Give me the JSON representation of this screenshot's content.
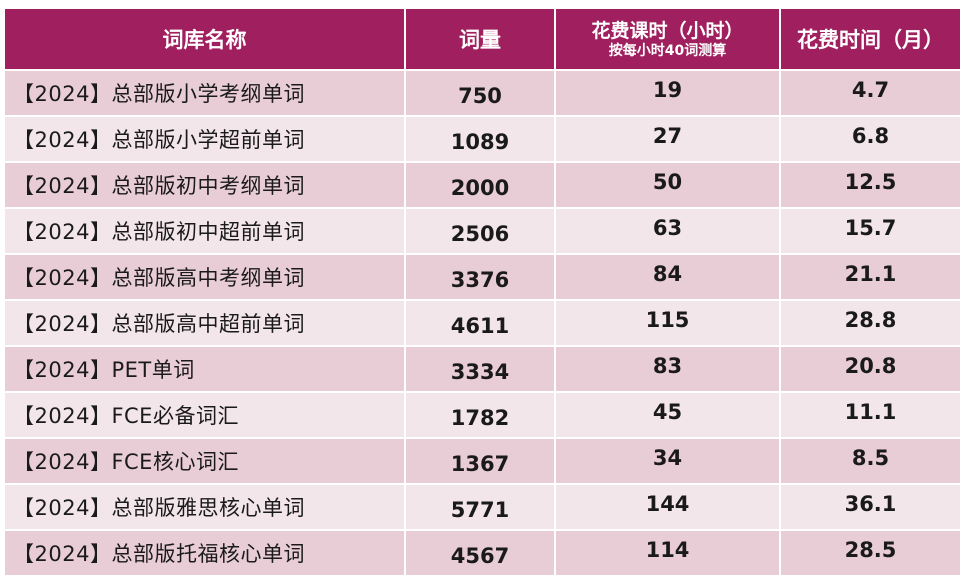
{
  "table": {
    "headers": {
      "name": "词库名称",
      "count": "词量",
      "hours": "花费课时（小时）",
      "hours_sub": "按每小时40词测算",
      "months": "花费时间（月）"
    },
    "rows": [
      {
        "name": "【2024】总部版小学考纲单词",
        "count": "750",
        "hours": "19",
        "months": "4.7"
      },
      {
        "name": "【2024】总部版小学超前单词",
        "count": "1089",
        "hours": "27",
        "months": "6.8"
      },
      {
        "name": "【2024】总部版初中考纲单词",
        "count": "2000",
        "hours": "50",
        "months": "12.5"
      },
      {
        "name": "【2024】总部版初中超前单词",
        "count": "2506",
        "hours": "63",
        "months": "15.7"
      },
      {
        "name": "【2024】总部版高中考纲单词",
        "count": "3376",
        "hours": "84",
        "months": "21.1"
      },
      {
        "name": "【2024】总部版高中超前单词",
        "count": "4611",
        "hours": "115",
        "months": "28.8"
      },
      {
        "name": "【2024】PET单词",
        "count": "3334",
        "hours": "83",
        "months": "20.8"
      },
      {
        "name": "【2024】FCE必备词汇",
        "count": "1782",
        "hours": "45",
        "months": "11.1"
      },
      {
        "name": "【2024】FCE核心词汇",
        "count": "1367",
        "hours": "34",
        "months": "8.5"
      },
      {
        "name": "【2024】总部版雅思核心单词",
        "count": "5771",
        "hours": "144",
        "months": "36.1"
      },
      {
        "name": "【2024】总部版托福核心单词",
        "count": "4567",
        "hours": "114",
        "months": "28.5"
      }
    ]
  }
}
